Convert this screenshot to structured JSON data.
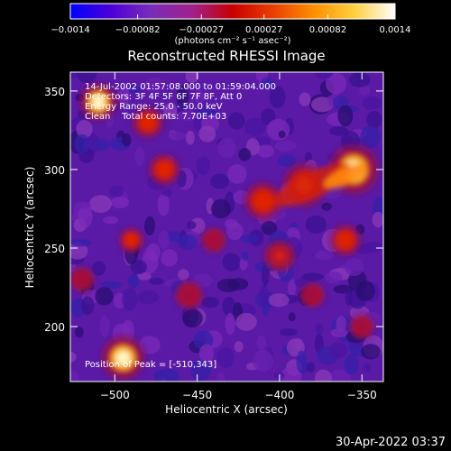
{
  "colorbar": {
    "min": -0.0014,
    "max": 0.0014,
    "ticks": [
      "-0.0014",
      "-0.00082",
      "-0.00027",
      "0.00027",
      "0.00082",
      "0.0014"
    ],
    "units_label": "(photons cm⁻² s⁻¹ asec⁻²)",
    "colors": [
      "#0000ff",
      "#4b00d8",
      "#7a2db8",
      "#a0208c",
      "#c80000",
      "#e84000",
      "#ff9000",
      "#ffd040",
      "#ffffff"
    ]
  },
  "chart_data": {
    "type": "heatmap",
    "title": "Reconstructed RHESSI Image",
    "xlabel": "Heliocentric X (arcsec)",
    "ylabel": "Heliocentric Y (arcsec)",
    "xlim": [
      -527,
      -337
    ],
    "ylim": [
      165,
      362
    ],
    "xticks": [
      -500,
      -450,
      -400,
      -350
    ],
    "yticks": [
      200,
      250,
      300,
      350
    ],
    "xtick_labels": [
      "−500",
      "−450",
      "−400",
      "−350"
    ],
    "ytick_labels": [
      "200",
      "250",
      "300",
      "350"
    ],
    "annotations": [
      "14-Jul-2002 01:57:08.000 to 01:59:04.000",
      "Detectors: 3F 4F 5F 6F 7F 8F, Att 0",
      "Energy Range: 25.0 - 50.0 keV",
      "Clean    Total counts: 7.70E+03"
    ],
    "peak_label": "Position of Peak = [-510,343]",
    "peak_position": [
      -510,
      343
    ],
    "hot_regions": [
      {
        "x": -510,
        "y": 343,
        "intensity": 1.0,
        "size": 12
      },
      {
        "x": -495,
        "y": 180,
        "intensity": 0.95,
        "size": 14
      },
      {
        "x": -355,
        "y": 300,
        "intensity": 0.95,
        "size": 16
      },
      {
        "x": -385,
        "y": 290,
        "intensity": 0.7,
        "size": 14
      },
      {
        "x": -410,
        "y": 280,
        "intensity": 0.6,
        "size": 12
      },
      {
        "x": -470,
        "y": 300,
        "intensity": 0.6,
        "size": 10
      },
      {
        "x": -480,
        "y": 330,
        "intensity": 0.55,
        "size": 10
      },
      {
        "x": -490,
        "y": 255,
        "intensity": 0.6,
        "size": 8
      },
      {
        "x": -440,
        "y": 255,
        "intensity": 0.45,
        "size": 8
      },
      {
        "x": -400,
        "y": 245,
        "intensity": 0.5,
        "size": 10
      },
      {
        "x": -360,
        "y": 255,
        "intensity": 0.55,
        "size": 10
      },
      {
        "x": -455,
        "y": 220,
        "intensity": 0.45,
        "size": 9
      },
      {
        "x": -380,
        "y": 220,
        "intensity": 0.45,
        "size": 8
      },
      {
        "x": -520,
        "y": 230,
        "intensity": 0.4,
        "size": 8
      },
      {
        "x": -350,
        "y": 200,
        "intensity": 0.35,
        "size": 8
      }
    ]
  },
  "footer": {
    "timestamp": "30-Apr-2022 03:37"
  }
}
